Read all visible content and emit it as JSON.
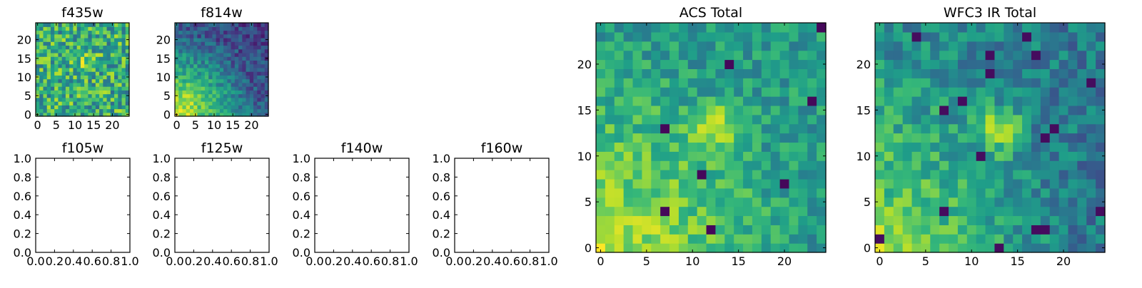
{
  "chart_data": [
    {
      "id": "f435w",
      "type": "heatmap",
      "title": "f435w",
      "grid_size": 25,
      "xlim": [
        -0.5,
        24.5
      ],
      "ylim": [
        -0.5,
        24.5
      ],
      "xticks": [
        "0",
        "5",
        "10",
        "15",
        "20"
      ],
      "yticks": [
        "0",
        "5",
        "10",
        "15",
        "20"
      ],
      "colormap": "viridis",
      "pattern": "mostly bright yellow-green noise with a brighter blob near (13,13)"
    },
    {
      "id": "f814w",
      "type": "heatmap",
      "title": "f814w",
      "grid_size": 25,
      "xlim": [
        -0.5,
        24.5
      ],
      "ylim": [
        -0.5,
        24.5
      ],
      "xticks": [
        "0",
        "5",
        "10",
        "15",
        "20"
      ],
      "yticks": [
        "0",
        "5",
        "10",
        "15",
        "20"
      ],
      "colormap": "viridis",
      "pattern": "bright yellow gradient at lower-left corner, fading to teal/blue toward top-right"
    },
    {
      "id": "f105w",
      "type": "empty",
      "title": "f105w",
      "xlim": [
        0,
        1
      ],
      "ylim": [
        0,
        1
      ],
      "xticks": [
        "0.0",
        "0.2",
        "0.4",
        "0.6",
        "0.8",
        "1.0"
      ],
      "yticks": [
        "0.0",
        "0.2",
        "0.4",
        "0.6",
        "0.8",
        "1.0"
      ]
    },
    {
      "id": "f125w",
      "type": "empty",
      "title": "f125w",
      "xlim": [
        0,
        1
      ],
      "ylim": [
        0,
        1
      ],
      "xticks": [
        "0.0",
        "0.2",
        "0.4",
        "0.6",
        "0.8",
        "1.0"
      ],
      "yticks": [
        "0.0",
        "0.2",
        "0.4",
        "0.6",
        "0.8",
        "1.0"
      ]
    },
    {
      "id": "f140w",
      "type": "empty",
      "title": "f140w",
      "xlim": [
        0,
        1
      ],
      "ylim": [
        0,
        1
      ],
      "xticks": [
        "0.0",
        "0.2",
        "0.4",
        "0.6",
        "0.8",
        "1.0"
      ],
      "yticks": [
        "0.0",
        "0.2",
        "0.4",
        "0.6",
        "0.8",
        "1.0"
      ]
    },
    {
      "id": "f160w",
      "type": "empty",
      "title": "f160w",
      "xlim": [
        0,
        1
      ],
      "ylim": [
        0,
        1
      ],
      "xticks": [
        "0.0",
        "0.2",
        "0.4",
        "0.6",
        "0.8",
        "1.0"
      ],
      "yticks": [
        "0.0",
        "0.2",
        "0.4",
        "0.6",
        "0.8",
        "1.0"
      ]
    },
    {
      "id": "acs_total",
      "type": "heatmap",
      "title": "ACS Total",
      "grid_size": 25,
      "xlim": [
        -0.5,
        24.5
      ],
      "ylim": [
        -0.5,
        24.5
      ],
      "xticks": [
        "0",
        "5",
        "10",
        "15",
        "20"
      ],
      "yticks": [
        "0",
        "5",
        "10",
        "15",
        "20"
      ],
      "colormap": "viridis",
      "pattern": "yellow gradient at lower-left, bright blob near (13,13), scattered dark-purple pixels"
    },
    {
      "id": "wfc3_ir_total",
      "type": "heatmap",
      "title": "WFC3 IR Total",
      "grid_size": 25,
      "xlim": [
        -0.5,
        24.5
      ],
      "ylim": [
        -0.5,
        24.5
      ],
      "xticks": [
        "0",
        "5",
        "10",
        "15",
        "20"
      ],
      "yticks": [
        "0",
        "5",
        "10",
        "15",
        "20"
      ],
      "colormap": "viridis",
      "pattern": "yellow at lower-left, bright blob near (13,13), more dark-purple pixels toward right"
    }
  ]
}
